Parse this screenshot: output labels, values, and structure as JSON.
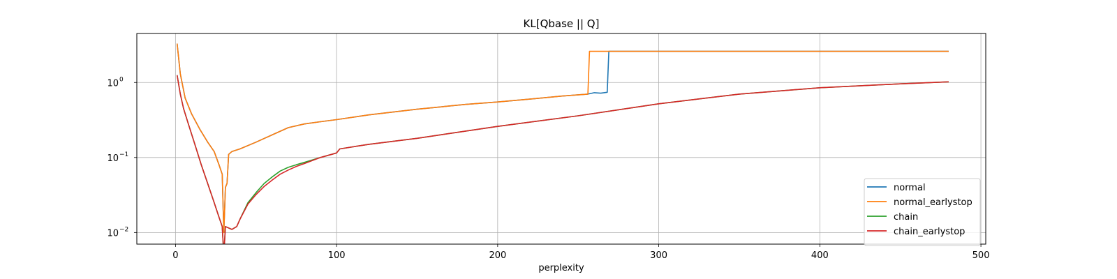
{
  "chart_data": {
    "type": "line",
    "title": "KL[Qbase || Q]",
    "xlabel": "perplexity",
    "ylabel": "",
    "xlim": [
      -24,
      503
    ],
    "ylim": [
      0.007,
      4.5
    ],
    "yscale": "log",
    "grid": true,
    "legend_position": "lower-right",
    "x_ticks": [
      0,
      100,
      200,
      300,
      400,
      500
    ],
    "x_tick_labels": [
      "0",
      "100",
      "200",
      "300",
      "400",
      "500"
    ],
    "y_ticks": [
      0.01,
      0.1,
      1
    ],
    "y_tick_labels": [
      "10",
      "10",
      "10"
    ],
    "y_tick_exponents": [
      "−2",
      "−1",
      "0"
    ],
    "series": [
      {
        "name": "normal",
        "color": "#1f77b4",
        "points": [
          [
            1,
            3.3
          ],
          [
            3,
            1.3
          ],
          [
            6,
            0.62
          ],
          [
            10,
            0.38
          ],
          [
            15,
            0.24
          ],
          [
            20,
            0.16
          ],
          [
            24,
            0.12
          ],
          [
            27,
            0.08
          ],
          [
            29,
            0.06
          ],
          [
            30,
            0.01
          ],
          [
            31,
            0.04
          ],
          [
            32,
            0.045
          ],
          [
            33,
            0.11
          ],
          [
            35,
            0.12
          ],
          [
            40,
            0.13
          ],
          [
            50,
            0.16
          ],
          [
            60,
            0.2
          ],
          [
            70,
            0.25
          ],
          [
            80,
            0.28
          ],
          [
            90,
            0.3
          ],
          [
            100,
            0.32
          ],
          [
            120,
            0.37
          ],
          [
            150,
            0.44
          ],
          [
            180,
            0.51
          ],
          [
            200,
            0.55
          ],
          [
            220,
            0.6
          ],
          [
            240,
            0.66
          ],
          [
            256,
            0.7
          ],
          [
            260,
            0.73
          ],
          [
            264,
            0.72
          ],
          [
            268,
            0.74
          ],
          [
            269,
            2.6
          ],
          [
            480,
            2.6
          ]
        ]
      },
      {
        "name": "normal_earlystop",
        "color": "#ff7f0e",
        "points": [
          [
            1,
            3.3
          ],
          [
            3,
            1.3
          ],
          [
            6,
            0.62
          ],
          [
            10,
            0.38
          ],
          [
            15,
            0.24
          ],
          [
            20,
            0.16
          ],
          [
            24,
            0.12
          ],
          [
            27,
            0.08
          ],
          [
            29,
            0.06
          ],
          [
            30,
            0.01
          ],
          [
            31,
            0.04
          ],
          [
            32,
            0.045
          ],
          [
            33,
            0.11
          ],
          [
            35,
            0.12
          ],
          [
            40,
            0.13
          ],
          [
            50,
            0.16
          ],
          [
            60,
            0.2
          ],
          [
            70,
            0.25
          ],
          [
            80,
            0.28
          ],
          [
            90,
            0.3
          ],
          [
            100,
            0.32
          ],
          [
            120,
            0.37
          ],
          [
            150,
            0.44
          ],
          [
            180,
            0.51
          ],
          [
            200,
            0.55
          ],
          [
            220,
            0.6
          ],
          [
            240,
            0.66
          ],
          [
            256,
            0.7
          ],
          [
            257,
            2.6
          ],
          [
            480,
            2.6
          ]
        ]
      },
      {
        "name": "chain",
        "color": "#2ca02c",
        "points": [
          [
            1,
            1.25
          ],
          [
            3,
            0.7
          ],
          [
            5,
            0.45
          ],
          [
            8,
            0.28
          ],
          [
            12,
            0.15
          ],
          [
            16,
            0.08
          ],
          [
            20,
            0.045
          ],
          [
            24,
            0.025
          ],
          [
            27,
            0.016
          ],
          [
            29,
            0.012
          ],
          [
            30,
            0.005
          ],
          [
            31,
            0.012
          ],
          [
            35,
            0.011
          ],
          [
            38,
            0.012
          ],
          [
            40,
            0.015
          ],
          [
            45,
            0.025
          ],
          [
            50,
            0.034
          ],
          [
            55,
            0.045
          ],
          [
            60,
            0.055
          ],
          [
            65,
            0.066
          ],
          [
            70,
            0.074
          ],
          [
            75,
            0.08
          ],
          [
            80,
            0.086
          ],
          [
            90,
            0.1
          ],
          [
            100,
            0.115
          ],
          [
            102,
            0.13
          ],
          [
            120,
            0.15
          ],
          [
            150,
            0.18
          ],
          [
            200,
            0.26
          ],
          [
            250,
            0.36
          ],
          [
            300,
            0.52
          ],
          [
            350,
            0.7
          ],
          [
            400,
            0.85
          ],
          [
            450,
            0.96
          ],
          [
            480,
            1.02
          ]
        ]
      },
      {
        "name": "chain_earlystop",
        "color": "#d62728",
        "points": [
          [
            1,
            1.25
          ],
          [
            3,
            0.7
          ],
          [
            5,
            0.45
          ],
          [
            8,
            0.28
          ],
          [
            12,
            0.15
          ],
          [
            16,
            0.08
          ],
          [
            20,
            0.045
          ],
          [
            24,
            0.025
          ],
          [
            27,
            0.016
          ],
          [
            29,
            0.012
          ],
          [
            30,
            0.005
          ],
          [
            31,
            0.012
          ],
          [
            35,
            0.011
          ],
          [
            38,
            0.012
          ],
          [
            40,
            0.015
          ],
          [
            45,
            0.024
          ],
          [
            50,
            0.032
          ],
          [
            55,
            0.041
          ],
          [
            60,
            0.05
          ],
          [
            65,
            0.06
          ],
          [
            70,
            0.068
          ],
          [
            75,
            0.076
          ],
          [
            80,
            0.083
          ],
          [
            90,
            0.1
          ],
          [
            100,
            0.115
          ],
          [
            102,
            0.13
          ],
          [
            120,
            0.15
          ],
          [
            150,
            0.18
          ],
          [
            200,
            0.26
          ],
          [
            250,
            0.36
          ],
          [
            300,
            0.52
          ],
          [
            350,
            0.7
          ],
          [
            400,
            0.85
          ],
          [
            450,
            0.96
          ],
          [
            480,
            1.02
          ]
        ]
      }
    ]
  }
}
